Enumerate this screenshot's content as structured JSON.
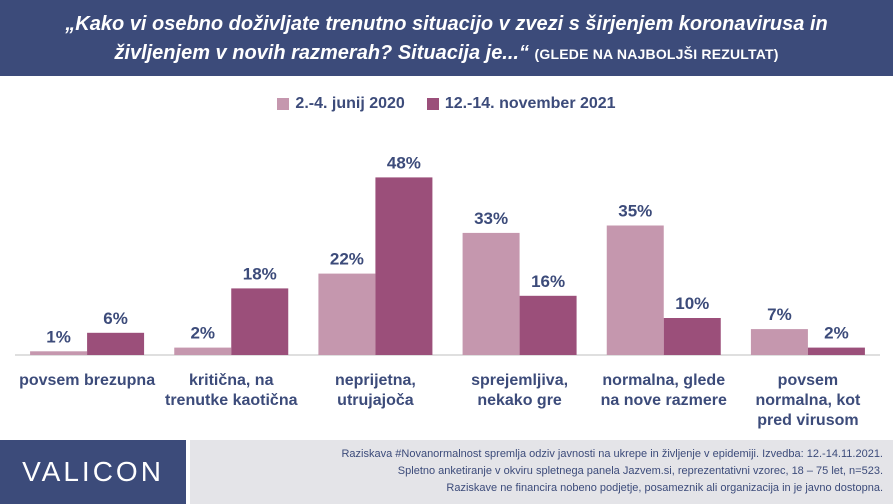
{
  "header": {
    "title_line1": "„Kako vi osebno doživljate trenutno situacijo v zvezi s širjenjem koronavirusa in",
    "title_line2": "življenjem v novih razmerah? Situacija je...“",
    "subtitle": "(GLEDE NA NAJBOLJŠI REZULTAT)"
  },
  "colors": {
    "header_bg": "#3c4b7a",
    "series_2020": "#c597ae",
    "series_2021": "#9b4f7a",
    "text": "#3c4b7a",
    "footer_bg": "#e4e4e8"
  },
  "chart_data": {
    "type": "bar",
    "categories": [
      [
        "povsem brezupna"
      ],
      [
        "kritična, na",
        "trenutke kaotična"
      ],
      [
        "neprijetna,",
        "utrujajoča"
      ],
      [
        "sprejemljiva,",
        "nekako gre"
      ],
      [
        "normalna, glede",
        "na nove razmere"
      ],
      [
        "povsem",
        "normalna, kot",
        "pred virusom"
      ]
    ],
    "series": [
      {
        "name": "2.-4. junij 2020",
        "values": [
          1,
          2,
          22,
          33,
          35,
          7
        ]
      },
      {
        "name": "12.-14. november 2021",
        "values": [
          6,
          18,
          48,
          16,
          10,
          2
        ]
      }
    ],
    "value_suffix": "%",
    "ylim": [
      0,
      50
    ],
    "grid": false,
    "legend_position": "top-center"
  },
  "footer": {
    "logo": "VALICON",
    "note_line1": "Raziskava #Novanormalnost spremlja odziv javnosti na ukrepe in življenje v epidemiji. Izvedba: 12.-14.11.2021.",
    "note_line2": "Spletno anketiranje v okviru spletnega panela Jazvem.si, reprezentativni vzorec, 18 – 75 let, n=523.",
    "note_line3": "Raziskave ne financira nobeno podjetje, posameznik ali organizacija in je javno dostopna."
  }
}
